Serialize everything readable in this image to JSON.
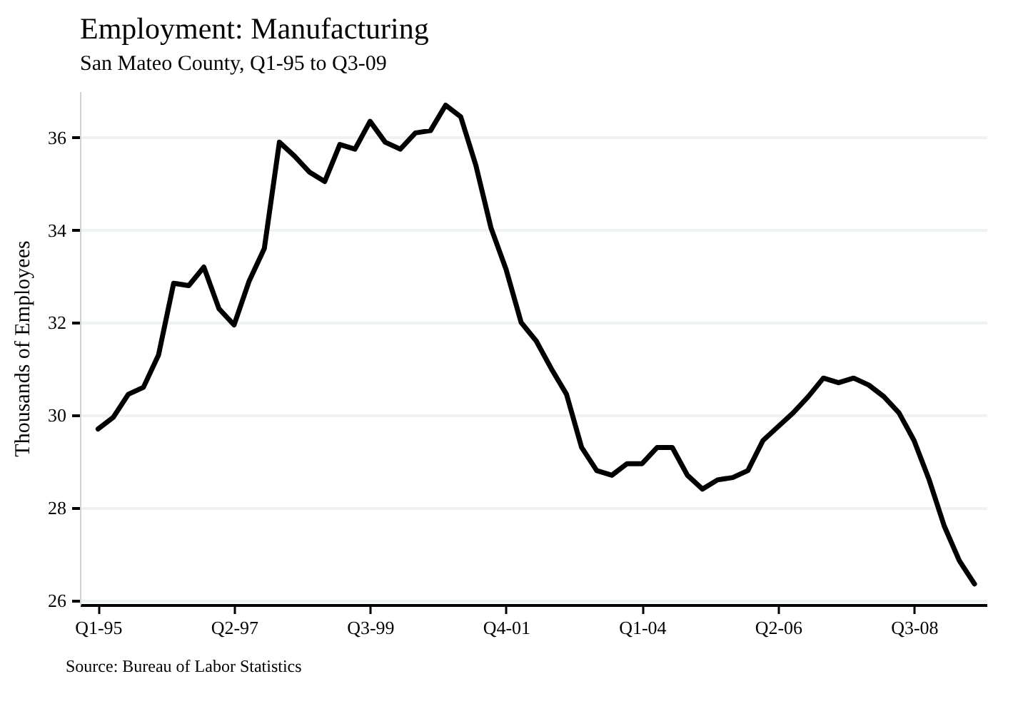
{
  "chart_data": {
    "type": "line",
    "title": "Employment: Manufacturing",
    "subtitle": "San Mateo County, Q1-95 to Q3-09",
    "ylabel": "Thousands of Employees",
    "annotations": [
      "Source: Bureau of Labor Statistics"
    ],
    "categories": [
      "Q1-95",
      null,
      null,
      null,
      null,
      null,
      null,
      null,
      null,
      "Q2-97",
      null,
      null,
      null,
      null,
      null,
      null,
      null,
      null,
      "Q3-99",
      null,
      null,
      null,
      null,
      null,
      null,
      null,
      null,
      "Q4-01",
      null,
      null,
      null,
      null,
      null,
      null,
      null,
      null,
      "Q1-04",
      null,
      null,
      null,
      null,
      null,
      null,
      null,
      null,
      "Q2-06",
      null,
      null,
      null,
      null,
      null,
      null,
      null,
      null,
      "Q3-08",
      null,
      null,
      null,
      null
    ],
    "series": [
      {
        "color": "#000000",
        "values": [
          29.7,
          29.95,
          30.45,
          30.6,
          31.3,
          32.85,
          32.8,
          33.2,
          32.3,
          31.95,
          32.9,
          33.6,
          35.9,
          35.6,
          35.25,
          35.05,
          35.85,
          35.75,
          36.35,
          35.9,
          35.75,
          36.1,
          36.15,
          36.7,
          36.45,
          35.4,
          34.05,
          33.15,
          32.0,
          31.6,
          31.0,
          30.45,
          29.3,
          28.8,
          28.7,
          28.95,
          28.95,
          29.3,
          29.3,
          28.7,
          28.4,
          28.6,
          28.65,
          28.8,
          29.45,
          29.75,
          30.05,
          30.4,
          30.8,
          30.7,
          30.8,
          30.65,
          30.4,
          30.05,
          29.45,
          28.6,
          27.6,
          26.85,
          26.35
        ]
      }
    ],
    "ylim": [
      25.9,
      37
    ],
    "yticks": [
      26,
      28,
      30,
      32,
      34,
      36
    ],
    "grid": "y",
    "marker": "none",
    "line_style": "solid"
  }
}
